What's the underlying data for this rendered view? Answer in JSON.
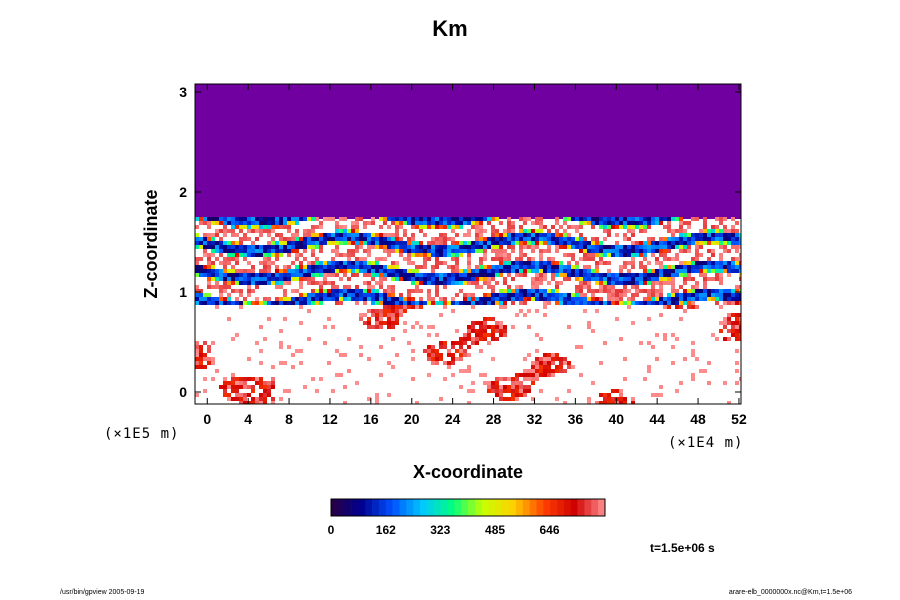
{
  "title": "Km",
  "chart_data": {
    "type": "heatmap",
    "title": "Km",
    "xlabel": "X-coordinate",
    "ylabel": "Z-coordinate",
    "x_unit": "(×1E4 m)",
    "y_unit": "(×1E5 m)",
    "x_ticks": [
      "0",
      "4",
      "8",
      "12",
      "16",
      "20",
      "24",
      "28",
      "32",
      "36",
      "40",
      "44",
      "48",
      "52"
    ],
    "x_tick_values": [
      0,
      4,
      8,
      12,
      16,
      20,
      24,
      28,
      32,
      36,
      40,
      44,
      48,
      52
    ],
    "y_ticks": [
      "0",
      "1",
      "2",
      "3"
    ],
    "y_tick_values": [
      0,
      1,
      2,
      3
    ],
    "xlim": [
      -1.2,
      52.2
    ],
    "ylim": [
      -0.12,
      3.08
    ],
    "value_range": [
      0,
      810
    ],
    "colorbar_ticks": [
      "0",
      "162",
      "323",
      "485",
      "646"
    ],
    "colorbar_tick_values": [
      0,
      162,
      323,
      485,
      646
    ],
    "colormap_stops": [
      "#2a0040",
      "#000090",
      "#0050ff",
      "#00c8ff",
      "#00ff80",
      "#c8ff00",
      "#ffd000",
      "#ff4000",
      "#d00000",
      "#ff9090"
    ],
    "field_regions": [
      {
        "description": "uniform",
        "z_range": [
          1.75,
          3.08
        ],
        "value": 0,
        "color": "#7000a0"
      },
      {
        "description": "noisy turbulent layer",
        "z_range": [
          0.9,
          1.75
        ],
        "value_range": [
          0,
          810
        ]
      },
      {
        "description": "sparse blobs",
        "z_range": [
          -0.12,
          0.9
        ],
        "value_range": [
          0,
          810
        ]
      }
    ],
    "timestamp": "t=1.5e+06 s"
  },
  "footer": {
    "left": "/usr/bin/gpview 2005-09-19",
    "right": "arare-elb_0000000x.nc@Km,t=1.5e+06"
  }
}
